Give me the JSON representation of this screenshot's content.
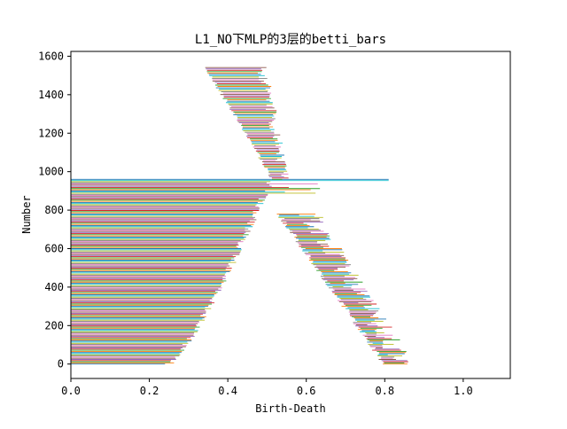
{
  "chart_data": {
    "type": "bar",
    "orientation": "horizontal",
    "title": "L1_NO下MLP的3层的betti_bars",
    "xlabel": "Birth-Death",
    "ylabel": "Number",
    "xlim": [
      0.0,
      1.12
    ],
    "ylim": [
      -75,
      1625
    ],
    "xticks": [
      "0.0",
      "0.2",
      "0.4",
      "0.6",
      "0.8",
      "1.0"
    ],
    "yticks": [
      "0",
      "200",
      "400",
      "600",
      "800",
      "1000",
      "1200",
      "1400",
      "1600"
    ],
    "grid": false,
    "legend": "none",
    "colors": [
      "#1f77b4",
      "#ff7f0e",
      "#2ca02c",
      "#d62728",
      "#9467bd",
      "#8c564b",
      "#e377c2",
      "#7f7f7f",
      "#bcbd22",
      "#17becf"
    ],
    "bar_groups": [
      {
        "name": "long",
        "index_range": [
          0,
          960
        ],
        "birth": 0.0,
        "death_start": 0.25,
        "death_end": 0.51,
        "death_max": 0.81
      },
      {
        "name": "lower_lobe",
        "index_range": [
          0,
          780
        ],
        "birth_start": 0.8,
        "birth_peak": 0.53,
        "death_start": 0.83,
        "death_end": 0.59
      },
      {
        "name": "upper_tail",
        "index_range": [
          960,
          1545
        ],
        "birth_start": 0.51,
        "birth_end": 0.34,
        "death_start": 0.54,
        "death_end": 0.48
      }
    ]
  }
}
